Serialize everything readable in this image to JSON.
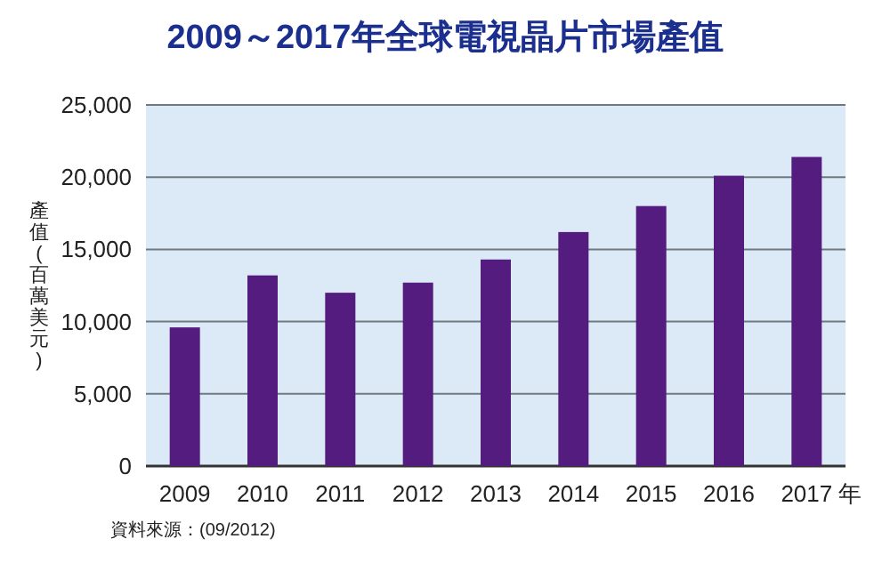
{
  "chart_data": {
    "type": "bar",
    "title": "2009～2017年全球電視晶片市場產值",
    "ylabel": "產值(百萬美元)",
    "xlabel": "年",
    "categories": [
      "2009",
      "2010",
      "2011",
      "2012",
      "2013",
      "2014",
      "2015",
      "2016",
      "2017"
    ],
    "values": [
      9600,
      13200,
      12000,
      12700,
      14300,
      16200,
      18000,
      20100,
      21400
    ],
    "color": "#541c7f",
    "ylim": [
      0,
      25000
    ],
    "yticks": [
      {
        "value": 0,
        "label": "0"
      },
      {
        "value": 5000,
        "label": "5,000"
      },
      {
        "value": 10000,
        "label": "10,000"
      },
      {
        "value": 15000,
        "label": "15,000"
      },
      {
        "value": 20000,
        "label": "20,000"
      },
      {
        "value": 25000,
        "label": "25,000"
      }
    ],
    "grid": "y",
    "annotations": [
      "資料來源：(09/2012)"
    ]
  }
}
